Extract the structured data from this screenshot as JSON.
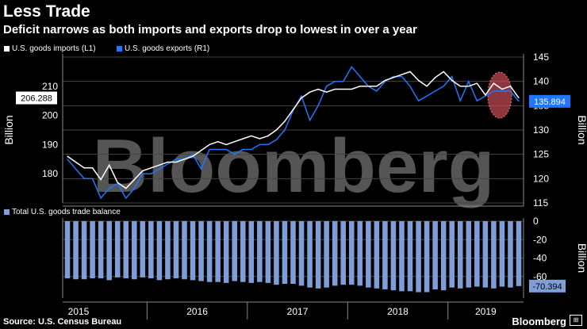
{
  "header": {
    "title": "Less Trade",
    "subtitle": "Deficit narrows as both imports and exports drop to lowest in over a year"
  },
  "footer": {
    "source": "Source: U.S. Census Bureau",
    "brand": "Bloomberg",
    "watermark": "Bloomberg"
  },
  "colors": {
    "imports": "#ffffff",
    "exports": "#1f77ff",
    "balance_bars": "#7f9ed8",
    "grid": "#444444",
    "highlight": "#d9535f",
    "background": "#000000"
  },
  "chart_data": [
    {
      "type": "line",
      "title": "",
      "legend_position": "top-left",
      "x_ticks": [
        "2015",
        "2016",
        "2017",
        "2018",
        "2019"
      ],
      "ylabel_left": "Billion",
      "ylabel_right": "Billion",
      "ylim_left": [
        170,
        220
      ],
      "ylim_right": [
        115,
        145
      ],
      "yticks_left": [
        180,
        190,
        200,
        210
      ],
      "yticks_right": [
        115,
        120,
        125,
        130,
        135,
        140,
        145
      ],
      "latest_left_label": "206.288",
      "latest_right_label": "135.894",
      "series": [
        {
          "name": "U.S. goods imports (L1)",
          "axis": "left",
          "color": "#ffffff",
          "values": [
            186,
            184,
            182,
            182,
            178,
            183,
            177,
            175,
            178,
            181,
            182,
            183,
            184,
            184,
            185,
            186,
            188,
            190,
            191,
            190,
            191,
            192,
            193,
            192,
            193,
            195,
            198,
            202,
            206,
            208,
            209,
            208,
            209,
            209,
            209,
            210,
            210,
            210,
            212,
            213,
            214,
            215,
            212,
            210,
            213,
            215,
            212,
            210,
            210,
            211,
            207,
            211,
            209,
            210,
            206
          ]
        },
        {
          "name": "U.S. goods exports (R1)",
          "axis": "right",
          "color": "#1f77ff",
          "values": [
            124,
            122,
            120,
            120,
            116,
            118,
            119,
            116,
            118,
            121,
            121,
            122,
            123,
            124,
            124,
            125,
            122,
            126,
            126,
            126,
            125,
            126,
            126,
            127,
            127,
            128,
            130,
            134,
            137,
            132,
            135,
            139,
            140,
            140,
            143,
            141,
            139,
            138,
            140,
            141,
            141,
            139,
            136,
            137,
            138,
            139,
            141,
            136,
            140,
            136,
            137,
            138,
            138,
            138,
            135.9
          ]
        }
      ]
    },
    {
      "type": "bar",
      "title": "",
      "legend_position": "top-left",
      "ylabel": "Billion",
      "ylim": [
        -80,
        0
      ],
      "yticks": [
        0,
        -20,
        -40,
        -60
      ],
      "latest_label": "-70.394",
      "series": [
        {
          "name": "Total U.S. goods trade balance",
          "color": "#7f9ed8",
          "values": [
            -62,
            -63,
            -63,
            -62,
            -62,
            -64,
            -61,
            -62,
            -63,
            -61,
            -62,
            -64,
            -63,
            -62,
            -63,
            -64,
            -65,
            -66,
            -66,
            -67,
            -65,
            -66,
            -67,
            -66,
            -67,
            -69,
            -68,
            -68,
            -70,
            -72,
            -73,
            -72,
            -70,
            -69,
            -69,
            -70,
            -72,
            -73,
            -74,
            -75,
            -76,
            -76,
            -77,
            -77,
            -74,
            -75,
            -72,
            -73,
            -72,
            -71,
            -72,
            -73,
            -71,
            -72,
            -70.4
          ]
        }
      ]
    }
  ]
}
